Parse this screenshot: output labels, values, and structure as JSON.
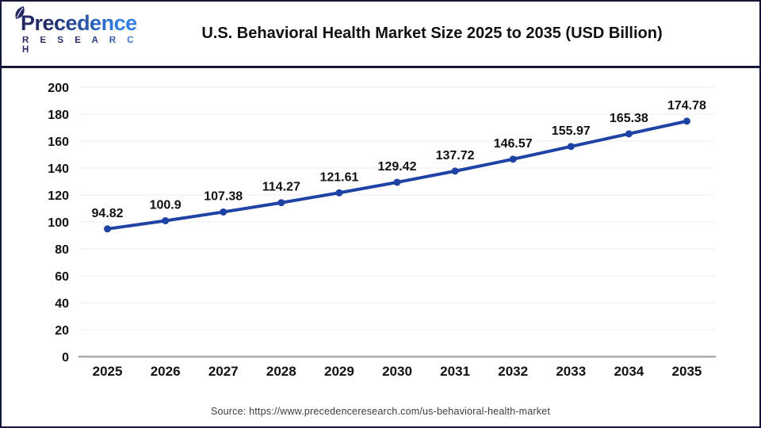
{
  "brand": {
    "name": "Precedence",
    "subname": "R E S E A R C H"
  },
  "footer": {
    "source": "Source: https://www.precedenceresearch.com/us-behavioral-health-market"
  },
  "colors": {
    "line": "#1f42a5",
    "marker": "#1f42a5",
    "grid": "#ececec",
    "axis": "#ababab",
    "frame": "#15173a",
    "label": "#111111",
    "source_text": "#3d3d3d",
    "logo_dark": "#252a66",
    "logo_light": "#2e7ee6"
  },
  "chart_data": {
    "type": "line",
    "title": "U.S. Behavioral Health Market Size 2025 to 2035 (USD Billion)",
    "categories": [
      "2025",
      "2026",
      "2027",
      "2028",
      "2029",
      "2030",
      "2031",
      "2032",
      "2033",
      "2034",
      "2035"
    ],
    "values": [
      94.82,
      100.9,
      107.38,
      114.27,
      121.61,
      129.42,
      137.72,
      146.57,
      155.97,
      165.38,
      174.78
    ],
    "point_labels": [
      "94.82",
      "100.9",
      "107.38",
      "114.27",
      "121.61",
      "129.42",
      "137.72",
      "146.57",
      "155.97",
      "165.38",
      "174.78"
    ],
    "xlabel": "",
    "ylabel": "",
    "ylim": [
      0,
      200
    ],
    "yticks": [
      0,
      20,
      40,
      60,
      80,
      100,
      120,
      140,
      160,
      180,
      200
    ],
    "grid": true,
    "legend": "none"
  }
}
